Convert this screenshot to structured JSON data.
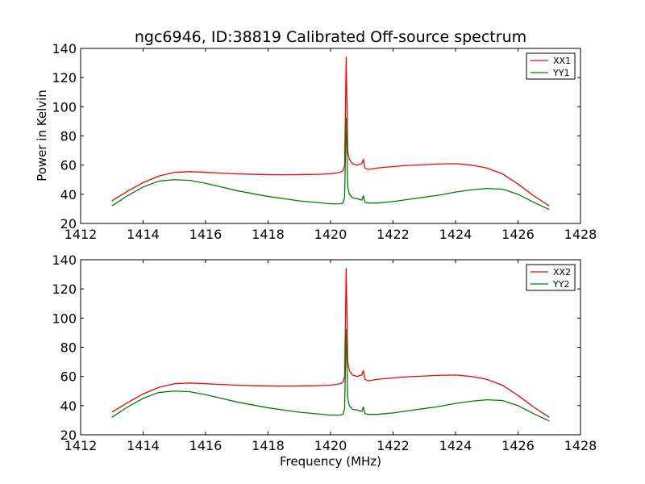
{
  "chart_data": {
    "type": "line",
    "title": "ngc6946, ID:38819 Calibrated Off-source spectrum",
    "xlabel": "Frequency (MHz)",
    "ylabel": "Power in Kelvin",
    "grid": false,
    "xlim": [
      1412,
      1428
    ],
    "ylim": [
      20,
      140
    ],
    "x_ticks": [
      "1412",
      "1414",
      "1416",
      "1418",
      "1420",
      "1422",
      "1424",
      "1426",
      "1428"
    ],
    "y_ticks": [
      "20",
      "40",
      "60",
      "80",
      "100",
      "120",
      "140"
    ],
    "x": [
      1413,
      1413.5,
      1414,
      1414.5,
      1415,
      1415.5,
      1416,
      1416.5,
      1417,
      1417.5,
      1418,
      1418.5,
      1419,
      1419.5,
      1420,
      1420.3,
      1420.4,
      1420.45,
      1420.5,
      1420.55,
      1420.6,
      1420.7,
      1420.85,
      1421,
      1421.05,
      1421.1,
      1421.2,
      1421.5,
      1422,
      1422.5,
      1423,
      1423.5,
      1424,
      1424.5,
      1425,
      1425.5,
      1426,
      1426.5,
      1427
    ],
    "panels": [
      {
        "legend_position": "upper right",
        "series": [
          {
            "name": "XX1",
            "color": "#ff0000",
            "values": [
              35.5,
              42,
              48,
              52.5,
              55,
              55.5,
              55,
              54.5,
              54,
              53.7,
              53.5,
              53.4,
              53.5,
              53.6,
              54,
              55,
              56,
              60,
              134,
              70,
              64,
              61,
              60,
              61,
              64,
              58,
              57,
              58,
              59,
              59.8,
              60.3,
              60.8,
              61,
              60,
              58,
              54,
              47,
              39,
              32
            ]
          },
          {
            "name": "YY1",
            "color": "#007f00",
            "values": [
              32,
              39,
              45,
              49,
              50,
              49.5,
              47.5,
              45,
              42.5,
              40.5,
              38.5,
              37,
              35.5,
              34.5,
              33.5,
              33.5,
              34,
              38,
              92,
              45,
              40,
              37.5,
              37,
              36,
              39,
              34.5,
              34,
              34,
              35,
              36.5,
              38,
              39.5,
              41.5,
              43,
              44,
              43.5,
              40,
              34.5,
              29.5
            ]
          }
        ]
      },
      {
        "legend_position": "upper right",
        "series": [
          {
            "name": "XX2",
            "color": "#ff0000",
            "values": [
              35.5,
              42,
              48,
              52.5,
              55,
              55.5,
              55,
              54.5,
              54,
              53.7,
              53.5,
              53.4,
              53.5,
              53.6,
              54,
              55,
              56,
              60,
              134,
              70,
              64,
              61,
              60,
              61,
              64,
              58,
              57,
              58,
              59,
              59.8,
              60.3,
              60.8,
              61,
              60,
              58,
              54,
              47,
              39,
              32
            ]
          },
          {
            "name": "YY2",
            "color": "#007f00",
            "values": [
              32,
              39,
              45,
              49,
              50,
              49.5,
              47.5,
              45,
              42.5,
              40.5,
              38.5,
              37,
              35.5,
              34.5,
              33.5,
              33.5,
              34,
              38,
              92,
              45,
              40,
              37.5,
              37,
              36,
              39,
              34.5,
              34,
              34,
              35,
              36.5,
              38,
              39.5,
              41.5,
              43,
              44,
              43.5,
              40,
              34.5,
              29.5
            ]
          }
        ]
      }
    ]
  }
}
